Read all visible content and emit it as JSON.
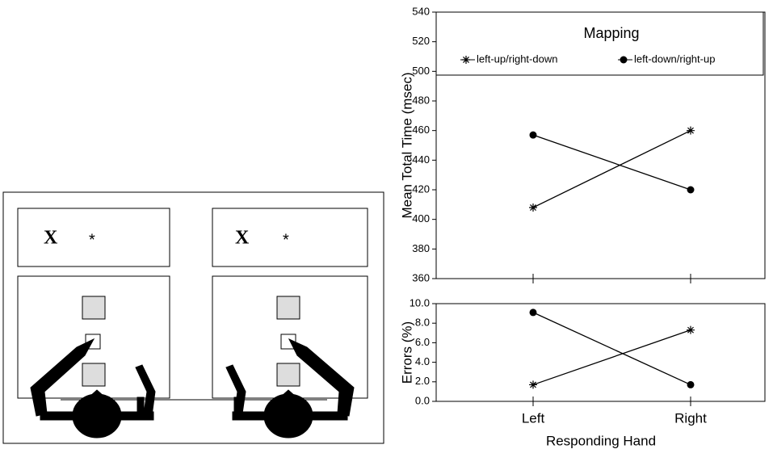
{
  "diagram": {
    "panels": [
      {
        "letter": "X",
        "symbol": "*"
      },
      {
        "letter": "X",
        "symbol": "*"
      }
    ]
  },
  "chart_data": [
    {
      "type": "line",
      "ylabel": "Mean Total Time (msec)",
      "categories": [
        null,
        null
      ],
      "legend_title": "Mapping",
      "legend": "top",
      "ylim": [
        360,
        540
      ],
      "yticks": [
        360,
        380,
        400,
        420,
        440,
        460,
        480,
        500,
        520,
        540
      ],
      "series": [
        {
          "name": "left-up/right-down",
          "marker": "star",
          "color": "#000000",
          "values": [
            408,
            460
          ]
        },
        {
          "name": "left-down/right-up",
          "marker": "dot",
          "color": "#000000",
          "values": [
            457,
            420
          ]
        }
      ]
    },
    {
      "type": "line",
      "ylabel": "Errors (%)",
      "xlabel": "Responding Hand",
      "categories": [
        "Left",
        "Right"
      ],
      "ylim": [
        0,
        10
      ],
      "yticks": [
        {
          "value": 0,
          "label": "0.0"
        },
        {
          "value": 2,
          "label": "2.0"
        },
        {
          "value": 4,
          "label": "4.0"
        },
        {
          "value": 6,
          "label": "6.0"
        },
        {
          "value": 8,
          "label": "8.0"
        },
        {
          "value": 10,
          "label": "10.0"
        }
      ],
      "series": [
        {
          "marker": "star",
          "color": "#000000",
          "values": [
            1.7,
            7.3
          ]
        },
        {
          "marker": "dot",
          "color": "#000000",
          "values": [
            9.1,
            1.7
          ]
        }
      ]
    }
  ]
}
